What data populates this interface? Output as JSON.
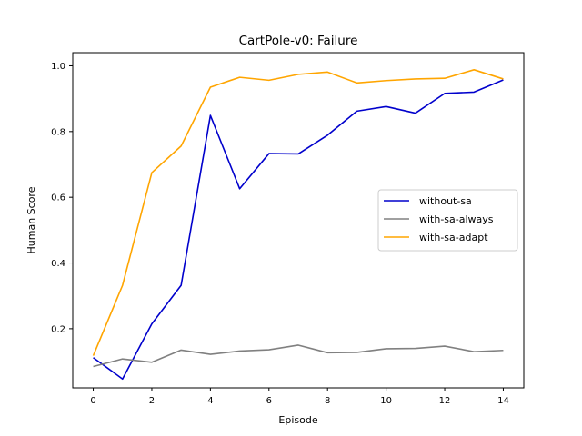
{
  "chart_data": {
    "type": "line",
    "title": "CartPole-v0: Failure",
    "xlabel": "Episode",
    "ylabel": "Human Score",
    "xlim": [
      -0.7,
      14.7
    ],
    "ylim": [
      0.02,
      1.04
    ],
    "xticks": [
      0,
      2,
      4,
      6,
      8,
      10,
      12,
      14
    ],
    "yticks": [
      0.2,
      0.4,
      0.6,
      0.8,
      1.0
    ],
    "ytick_labels": [
      "0.2",
      "0.4",
      "0.6",
      "0.8",
      "1.0"
    ],
    "grid": false,
    "legend_position": "center-right",
    "x": [
      0,
      1,
      2,
      3,
      4,
      5,
      6,
      7,
      8,
      9,
      10,
      11,
      12,
      13,
      14
    ],
    "series": [
      {
        "name": "without-sa",
        "color": "#0000cc",
        "values": [
          0.112,
          0.047,
          0.215,
          0.332,
          0.849,
          0.626,
          0.733,
          0.732,
          0.789,
          0.862,
          0.876,
          0.856,
          0.916,
          0.92,
          0.957
        ]
      },
      {
        "name": "with-sa-always",
        "color": "#808080",
        "values": [
          0.085,
          0.108,
          0.098,
          0.135,
          0.122,
          0.132,
          0.136,
          0.15,
          0.127,
          0.128,
          0.139,
          0.14,
          0.147,
          0.13,
          0.134
        ]
      },
      {
        "name": "with-sa-adapt",
        "color": "#ffa500",
        "values": [
          0.118,
          0.332,
          0.675,
          0.756,
          0.935,
          0.965,
          0.956,
          0.974,
          0.981,
          0.948,
          0.955,
          0.96,
          0.962,
          0.988,
          0.96
        ]
      }
    ]
  }
}
